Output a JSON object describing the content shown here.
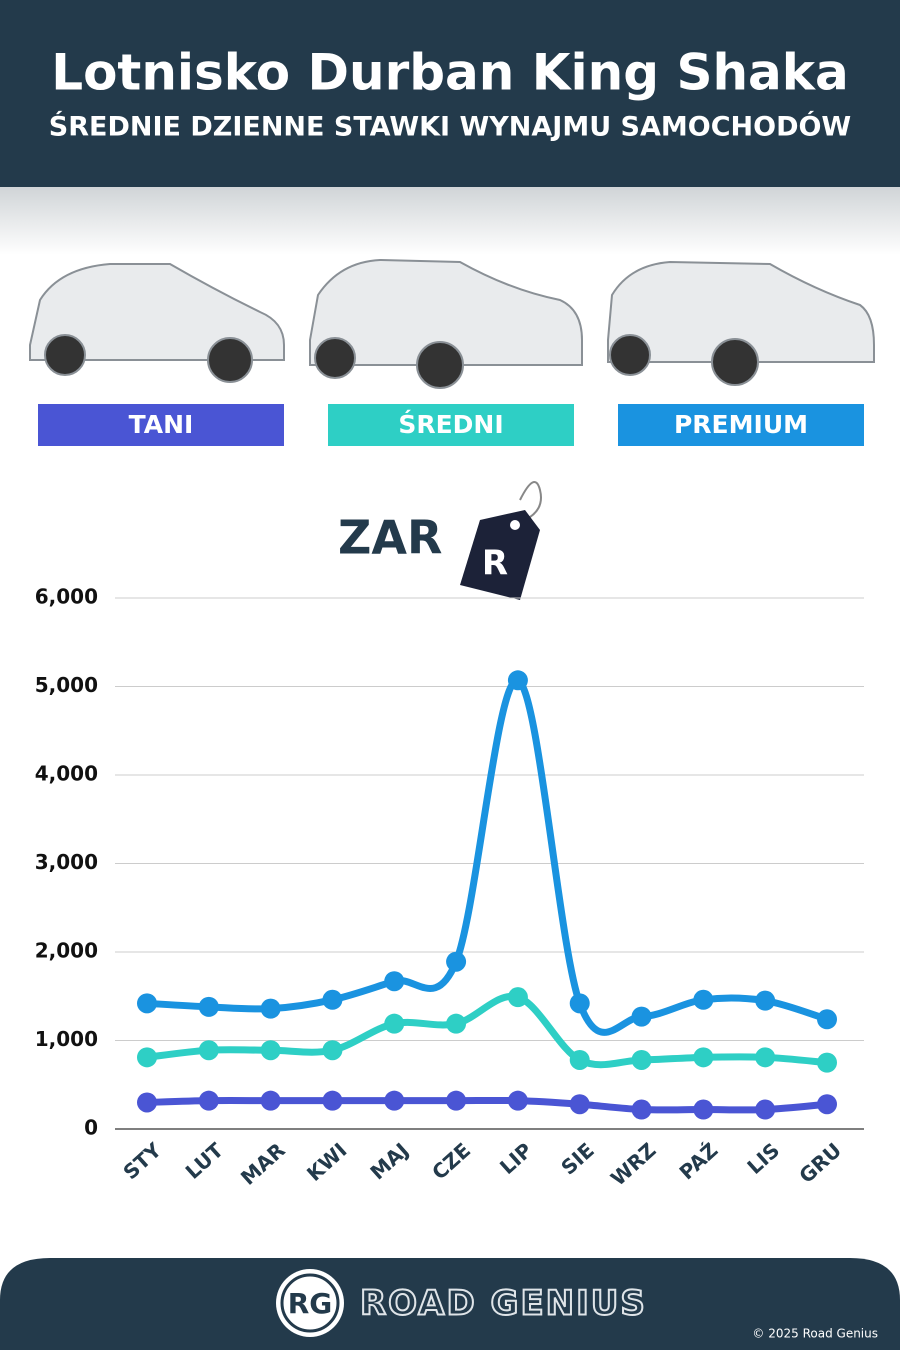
{
  "chart_data": {
    "type": "line",
    "title": "Lotnisko Durban King Shaka",
    "subtitle": "ŚREDNIE DZIENNE STAWKI WYNAJMU SAMOCHODÓW",
    "ylabel": "ZAR",
    "currency_symbol": "R",
    "categories": [
      "STY",
      "LUT",
      "MAR",
      "KWI",
      "MAJ",
      "CZE",
      "LIP",
      "SIE",
      "WRZ",
      "PAŹ",
      "LIS",
      "GRU"
    ],
    "series": [
      {
        "name": "TANI",
        "color": "#4a55d4",
        "values": [
          300,
          320,
          320,
          320,
          320,
          320,
          320,
          280,
          220,
          220,
          220,
          280
        ]
      },
      {
        "name": "ŚREDNI",
        "color": "#2ecfc5",
        "values": [
          810,
          890,
          890,
          890,
          1190,
          1190,
          1490,
          780,
          780,
          810,
          810,
          750
        ]
      },
      {
        "name": "PREMIUM",
        "color": "#1a93e0",
        "values": [
          1420,
          1380,
          1360,
          1460,
          1670,
          1890,
          5070,
          1420,
          1270,
          1460,
          1450,
          1240
        ]
      }
    ],
    "ylim": [
      0,
      6000
    ],
    "yticks": [
      0,
      {
        "value": 1000,
        "label": "1,000"
      },
      {
        "value": 2000,
        "label": "2,000"
      },
      {
        "value": 3000,
        "label": "3,000"
      },
      {
        "value": 4000,
        "label": "4,000"
      },
      {
        "value": 5000,
        "label": "5,000"
      },
      {
        "value": 6000,
        "label": "6,000"
      }
    ],
    "grid": true
  },
  "footer": {
    "logo": "RG",
    "brand": "ROAD GENIUS",
    "copyright": "© 2025 Road Genius"
  }
}
